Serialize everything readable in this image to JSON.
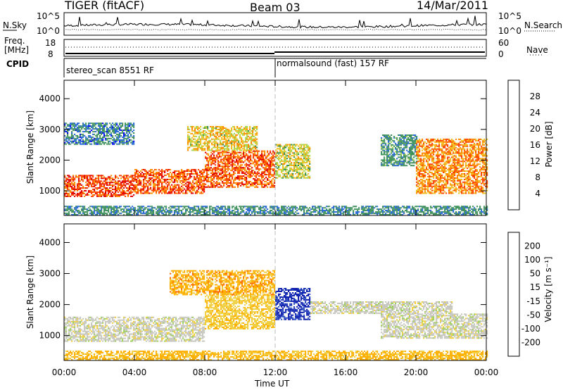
{
  "header": {
    "radar": "TIGER (fitACF)",
    "beam": "Beam 03",
    "date": "14/Mar/2011"
  },
  "top_labels": {
    "nsky": "N.Sky",
    "freq_line1": "Freq.",
    "freq_line2": "[MHz]",
    "cpid": "CPID",
    "nsearch": "N.Search",
    "nave": "Nave",
    "noise_ticks_left": [
      "10^5",
      "10^0"
    ],
    "noise_ticks_right": [
      "10^5",
      "10^0"
    ],
    "freq_ticks_left": [
      "18",
      "8"
    ],
    "nave_ticks_right": [
      "60",
      "0"
    ]
  },
  "cpid_segments": [
    {
      "label": "stereo_scan 8551 RF",
      "start": "00:00",
      "end": "12:00"
    },
    {
      "label": "normalsound (fast) 157 RF",
      "start": "12:00",
      "end": "24:00"
    }
  ],
  "colors": {
    "power": [
      "#0000ff",
      "#2a6ad6",
      "#4e9a6b",
      "#3c8f57",
      "#a8d64e",
      "#f0c020",
      "#ff8c00",
      "#ff4500",
      "#e00000"
    ],
    "velocity": [
      "#e00000",
      "#ff6a00",
      "#ffb000",
      "#f0d040",
      "#c8c8c0",
      "#a0d060",
      "#4caf50",
      "#3050c0",
      "#1020b0"
    ]
  },
  "chart_data": [
    {
      "type": "heatmap",
      "panel": "power",
      "ylabel": "Slant Range [km]",
      "ylim": [
        200,
        4600
      ],
      "yticks": [
        1000,
        2000,
        3000,
        4000
      ],
      "xticks": [
        "00:00",
        "04:00",
        "08:00",
        "12:00",
        "16:00",
        "20:00",
        "00:00"
      ],
      "xlim_hours": [
        0,
        24
      ],
      "colorbar": {
        "label": "Power [dB]",
        "ticks": [
          "4",
          "8",
          "12",
          "16",
          "20",
          "24",
          "28"
        ],
        "range": [
          0,
          30
        ]
      },
      "echo_bands": [
        {
          "t0": 0,
          "t1": 4,
          "r0": 800,
          "r1": 1500,
          "level": 0.9
        },
        {
          "t0": 4,
          "t1": 8,
          "r0": 900,
          "r1": 1700,
          "level": 0.85
        },
        {
          "t0": 8,
          "t1": 12,
          "r0": 1100,
          "r1": 2300,
          "level": 0.85
        },
        {
          "t0": 7,
          "t1": 11,
          "r0": 2300,
          "r1": 3100,
          "level": 0.6
        },
        {
          "t0": 12,
          "t1": 14,
          "r0": 1400,
          "r1": 2500,
          "level": 0.55
        },
        {
          "t0": 18,
          "t1": 20,
          "r0": 1800,
          "r1": 2800,
          "level": 0.3
        },
        {
          "t0": 20,
          "t1": 24,
          "r0": 900,
          "r1": 2700,
          "level": 0.75
        },
        {
          "t0": 0,
          "t1": 24,
          "r0": 200,
          "r1": 500,
          "level": 0.25
        },
        {
          "t0": 0,
          "t1": 4,
          "r0": 2500,
          "r1": 3200,
          "level": 0.2
        }
      ]
    },
    {
      "type": "heatmap",
      "panel": "velocity",
      "ylabel": "Slant Range [km]",
      "ylim": [
        200,
        4600
      ],
      "yticks": [
        1000,
        2000,
        3000,
        4000
      ],
      "xticks": [
        "00:00",
        "04:00",
        "08:00",
        "12:00",
        "16:00",
        "20:00",
        "00:00"
      ],
      "xlim_hours": [
        0,
        24
      ],
      "xlabel": "Time UT",
      "colorbar": {
        "label": "Velocity [m s⁻¹]",
        "ticks": [
          "200",
          "100",
          "50",
          "15",
          "-15",
          "-50",
          "-100",
          "-200"
        ],
        "range": [
          -250,
          250
        ]
      },
      "echo_bands": [
        {
          "t0": 0,
          "t1": 8,
          "r0": 800,
          "r1": 1600,
          "level": 0.0
        },
        {
          "t0": 8,
          "t1": 12,
          "r0": 1200,
          "r1": 2300,
          "level": -0.3
        },
        {
          "t0": 12,
          "t1": 14,
          "r0": 1500,
          "r1": 2500,
          "level": 0.9
        },
        {
          "t0": 14,
          "t1": 22,
          "r0": 1700,
          "r1": 2100,
          "level": 0.0
        },
        {
          "t0": 18,
          "t1": 24,
          "r0": 900,
          "r1": 1700,
          "level": 0.0
        },
        {
          "t0": 0,
          "t1": 24,
          "r0": 200,
          "r1": 500,
          "level": -0.45
        },
        {
          "t0": 6,
          "t1": 12,
          "r0": 2300,
          "r1": 3100,
          "level": -0.5
        }
      ]
    }
  ]
}
